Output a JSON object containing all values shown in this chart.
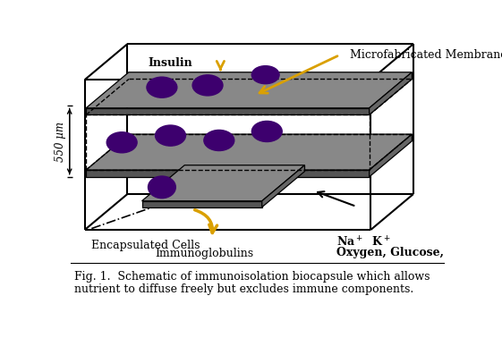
{
  "caption_line1": "Fig. 1.  Schematic of immunoisolation biocapsule which allows",
  "caption_line2": "nutrient to diffuse freely but excludes immune components.",
  "label_insulin": "Insulin",
  "label_membrane": "Microfabricated Membrane",
  "label_cells": "Encapsulated Cells",
  "label_immunoglobulins": "Immunoglobulins",
  "label_ions": "Na",
  "label_nutrients": "Oxygen, Glucose,",
  "label_550": "550 µm",
  "bg_color": "#ffffff",
  "box_edge_color": "#000000",
  "membrane_color": "#888888",
  "membrane_dark": "#555555",
  "cell_color": "#3d006e",
  "arrow_color": "#DAA000",
  "caption_fontsize": 9.0,
  "label_fontsize": 9.0
}
